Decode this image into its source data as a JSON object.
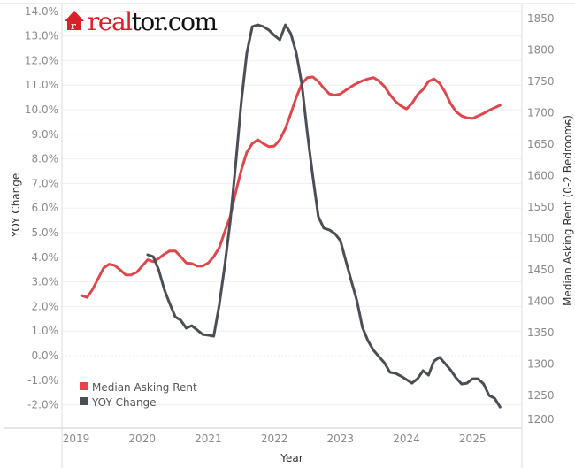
{
  "logo": {
    "text_red": "real",
    "text_black": "tor.com",
    "brand": "realtor.com"
  },
  "chart_data": {
    "type": "line",
    "dual_axis": true,
    "xlabel": "Year",
    "ylabel_left": "YOY Change",
    "ylabel_right": "Median Asking Rent (0-2 Bedrooms)",
    "x_ticks": [
      "2019",
      "2020",
      "2021",
      "2022",
      "2023",
      "2024",
      "2025"
    ],
    "y_left_ticks": [
      "14.0%",
      "13.0%",
      "12.0%",
      "11.0%",
      "10.0%",
      "9.0%",
      "8.0%",
      "7.0%",
      "6.0%",
      "5.0%",
      "4.0%",
      "3.0%",
      "2.0%",
      "1.0%",
      "0.0%",
      "-1.0%",
      "-2.0%"
    ],
    "y_left_range": [
      -2,
      14
    ],
    "y_right_ticks": [
      "1850",
      "1800",
      "1750",
      "1700",
      "1650",
      "1600",
      "1550",
      "1500",
      "1450",
      "1400",
      "1350",
      "1300",
      "1250",
      "1200"
    ],
    "y_right_range": [
      1200,
      1850
    ],
    "grid": true,
    "legend_position": "bottom-left",
    "x": [
      "2019-02",
      "2019-03",
      "2019-04",
      "2019-05",
      "2019-06",
      "2019-07",
      "2019-08",
      "2019-09",
      "2019-10",
      "2019-11",
      "2019-12",
      "2020-01",
      "2020-02",
      "2020-03",
      "2020-04",
      "2020-05",
      "2020-06",
      "2020-07",
      "2020-08",
      "2020-09",
      "2020-10",
      "2020-11",
      "2020-12",
      "2021-01",
      "2021-02",
      "2021-03",
      "2021-04",
      "2021-05",
      "2021-06",
      "2021-07",
      "2021-08",
      "2021-09",
      "2021-10",
      "2021-11",
      "2021-12",
      "2022-01",
      "2022-02",
      "2022-03",
      "2022-04",
      "2022-05",
      "2022-06",
      "2022-07",
      "2022-08",
      "2022-09",
      "2022-10",
      "2022-11",
      "2022-12",
      "2023-01",
      "2023-02",
      "2023-03",
      "2023-04",
      "2023-05",
      "2023-06",
      "2023-07",
      "2023-08",
      "2023-09",
      "2023-10",
      "2023-11",
      "2023-12",
      "2024-01",
      "2024-02",
      "2024-03",
      "2024-04",
      "2024-05",
      "2024-06",
      "2024-07",
      "2024-08",
      "2024-09",
      "2024-10",
      "2024-11",
      "2024-12",
      "2025-01",
      "2025-02",
      "2025-03",
      "2025-04",
      "2025-05",
      "2025-06"
    ],
    "series": [
      {
        "name": "Median Asking Rent",
        "axis": "right",
        "color": "#e0474c",
        "values": [
          1409,
          1406,
          1419,
          1436,
          1453,
          1459,
          1457,
          1450,
          1442,
          1442,
          1446,
          1456,
          1466,
          1463,
          1468,
          1475,
          1480,
          1480,
          1471,
          1461,
          1460,
          1456,
          1456,
          1461,
          1471,
          1485,
          1511,
          1535,
          1574,
          1609,
          1637,
          1651,
          1657,
          1651,
          1646,
          1647,
          1657,
          1675,
          1699,
          1725,
          1746,
          1756,
          1757,
          1750,
          1739,
          1730,
          1728,
          1730,
          1736,
          1742,
          1747,
          1751,
          1754,
          1756,
          1751,
          1742,
          1729,
          1718,
          1711,
          1706,
          1715,
          1729,
          1737,
          1750,
          1754,
          1747,
          1733,
          1715,
          1702,
          1695,
          1692,
          1691,
          1695,
          1699,
          1704,
          1708,
          1712
        ]
      },
      {
        "name": "YOY Change",
        "axis": "left",
        "color": "#4a4e55",
        "values": [
          null,
          null,
          null,
          null,
          null,
          null,
          null,
          null,
          null,
          null,
          null,
          null,
          4.1,
          4.03,
          3.49,
          2.7,
          2.12,
          1.58,
          1.44,
          1.12,
          1.22,
          1.04,
          0.86,
          0.83,
          0.79,
          2.05,
          3.67,
          5.47,
          7.81,
          10.32,
          12.3,
          13.38,
          13.45,
          13.38,
          13.24,
          13.02,
          12.84,
          13.45,
          13.09,
          12.3,
          11.04,
          9.06,
          7.27,
          5.65,
          5.18,
          5.11,
          4.96,
          4.68,
          3.85,
          3.02,
          2.23,
          1.15,
          0.61,
          0.22,
          -0.04,
          -0.29,
          -0.68,
          -0.72,
          -0.83,
          -0.97,
          -1.12,
          -0.94,
          -0.61,
          -0.79,
          -0.22,
          -0.07,
          -0.32,
          -0.58,
          -0.9,
          -1.15,
          -1.12,
          -0.94,
          -0.94,
          -1.15,
          -1.62,
          -1.73,
          -2.09
        ]
      }
    ]
  }
}
